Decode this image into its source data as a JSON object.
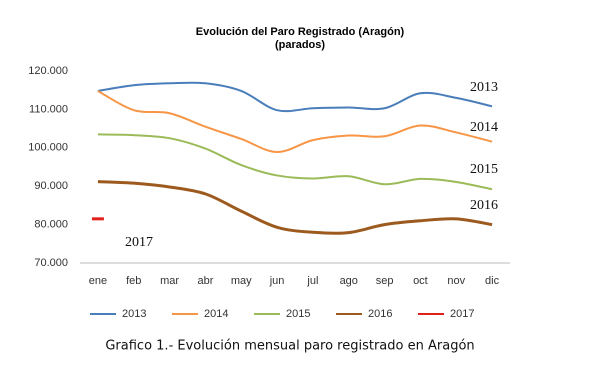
{
  "chart_data": {
    "type": "line",
    "title": "Evolución del Paro Registrado (Aragón)",
    "subtitle": "(parados)",
    "caption": "Grafico 1.- Evolución mensual paro registrado en Aragón",
    "categories": [
      "ene",
      "feb",
      "mar",
      "abr",
      "may",
      "jun",
      "jul",
      "ago",
      "sep",
      "oct",
      "nov",
      "dic"
    ],
    "series": [
      {
        "name": "2013",
        "color": "#4a7ebb",
        "values": [
          114800,
          116300,
          116800,
          116800,
          114800,
          109800,
          110300,
          110500,
          110300,
          114200,
          113000,
          110800
        ]
      },
      {
        "name": "2014",
        "color": "#f79646",
        "values": [
          114800,
          109800,
          109000,
          105500,
          102300,
          98900,
          102000,
          103200,
          103000,
          105800,
          104000,
          101600
        ]
      },
      {
        "name": "2015",
        "color": "#9bbb59",
        "values": [
          103500,
          103300,
          102500,
          99800,
          95500,
          92800,
          92000,
          92600,
          90500,
          91900,
          91100,
          89200
        ]
      },
      {
        "name": "2016",
        "color": "#9c5a1f",
        "values": [
          91200,
          90800,
          89800,
          88000,
          83500,
          79300,
          78000,
          77900,
          80000,
          81000,
          81500,
          80000
        ]
      },
      {
        "name": "2017",
        "color": "#e0201b",
        "values": [
          81500,
          null,
          null,
          null,
          null,
          null,
          null,
          null,
          null,
          null,
          null,
          null
        ]
      }
    ],
    "ylim": [
      70000,
      120000
    ],
    "yticks": [
      {
        "value": 70000,
        "label": "70.000"
      },
      {
        "value": 80000,
        "label": "80.000"
      },
      {
        "value": 90000,
        "label": "90.000"
      },
      {
        "value": 100000,
        "label": "100.000"
      },
      {
        "value": 110000,
        "label": "110.000"
      },
      {
        "value": 120000,
        "label": "120.000"
      }
    ],
    "grid": false,
    "legend": "bottom"
  }
}
